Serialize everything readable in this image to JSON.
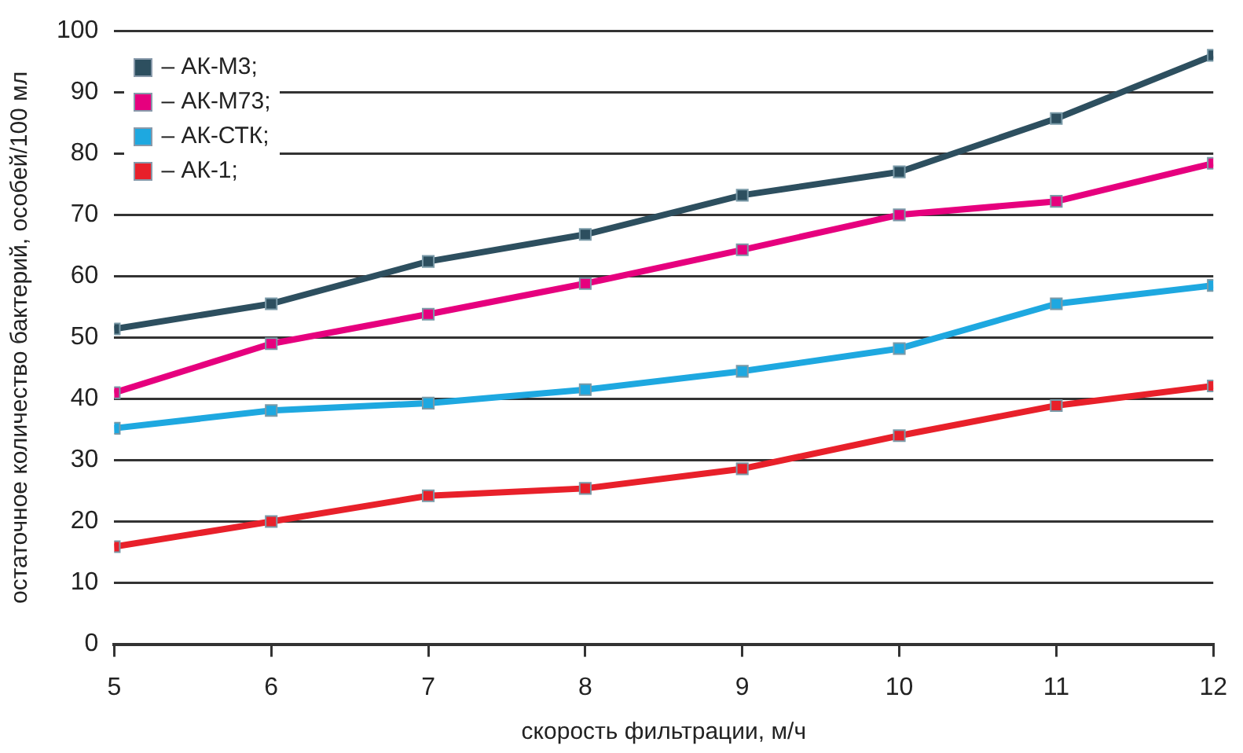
{
  "chart_data": {
    "type": "line",
    "xlabel": "скорость фильтрации, м/ч",
    "ylabel": "остаточное количество бактерий, особей/100 мл",
    "x": [
      5,
      6,
      7,
      8,
      9,
      10,
      11,
      12
    ],
    "xlim": [
      5,
      12
    ],
    "xticks": [
      5,
      6,
      7,
      8,
      9,
      10,
      11,
      12
    ],
    "ylim": [
      0,
      100
    ],
    "yticks": [
      0,
      10,
      20,
      30,
      40,
      50,
      60,
      70,
      80,
      90,
      100
    ],
    "grid": "y",
    "legend": "top left",
    "marker": "square",
    "line_style": "solid",
    "series": [
      {
        "name": "– АК-М3;",
        "color": "#2d4f5f",
        "values": [
          51.4,
          55.5,
          62.4,
          66.8,
          73.2,
          77,
          85.7,
          96
        ]
      },
      {
        "name": "– АК-М73;",
        "color": "#e6007e",
        "values": [
          41,
          49,
          53.8,
          58.8,
          64.3,
          70,
          72.2,
          78.4
        ]
      },
      {
        "name": "– АК-СТК;",
        "color": "#1ea8e0",
        "values": [
          35.2,
          38.1,
          39.3,
          41.5,
          44.5,
          48.2,
          55.5,
          58.5
        ]
      },
      {
        "name": "– АК-1;",
        "color": "#e8202a",
        "values": [
          15.9,
          20,
          24.2,
          25.4,
          28.6,
          34,
          38.9,
          42.1
        ]
      }
    ]
  }
}
